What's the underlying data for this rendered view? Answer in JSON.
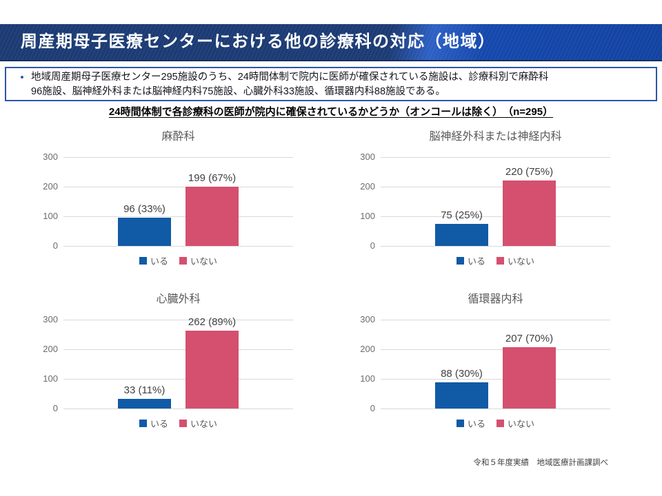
{
  "slide": {
    "title": "周産期母子医療センターにおける他の診療科の対応（地域）",
    "bullet_marker": "•",
    "bullet_text": "地域周産期母子医療センター295施設のうち、24時間体制で院内に医師が確保されている施設は、診療科別で麻酔科\n96施設、脳神経外科または脳神経内科75施設、心臓外科33施設、循環器内科88施設である。",
    "subtitle": "24時間体制で各診療科の医師が院内に確保されているかどうか（オンコールは除く）　（n=295）",
    "footer": "令和５年度実績　地域医療計画課調べ"
  },
  "colors": {
    "present_bar": "#115aa6",
    "absent_bar": "#d4506e",
    "header_dark": "#1c3b74",
    "header_bright": "#1548ad",
    "box_border": "#2b55a7",
    "gridline": "#d9d9d9",
    "axis_text": "#6c6c6c",
    "chart_title_text": "#595959",
    "value_text": "#404040"
  },
  "chart_data": [
    {
      "type": "bar",
      "title": "麻酔科",
      "categories": [
        "いる",
        "いない"
      ],
      "values": [
        96,
        199
      ],
      "value_labels": [
        "96 (33%)",
        "199 (67%)"
      ],
      "ylim": [
        0,
        300
      ],
      "yticks": [
        0,
        100,
        200,
        300
      ],
      "grid": true,
      "legend_position": "bottom"
    },
    {
      "type": "bar",
      "title": "脳神経外科または神経内科",
      "categories": [
        "いる",
        "いない"
      ],
      "values": [
        75,
        220
      ],
      "value_labels": [
        "75 (25%)",
        "220 (75%)"
      ],
      "ylim": [
        0,
        300
      ],
      "yticks": [
        0,
        100,
        200,
        300
      ],
      "grid": true,
      "legend_position": "bottom"
    },
    {
      "type": "bar",
      "title": "心臓外科",
      "categories": [
        "いる",
        "いない"
      ],
      "values": [
        33,
        262
      ],
      "value_labels": [
        "33 (11%)",
        "262 (89%)"
      ],
      "ylim": [
        0,
        300
      ],
      "yticks": [
        0,
        100,
        200,
        300
      ],
      "grid": true,
      "legend_position": "bottom"
    },
    {
      "type": "bar",
      "title": "循環器内科",
      "categories": [
        "いる",
        "いない"
      ],
      "values": [
        88,
        207
      ],
      "value_labels": [
        "88 (30%)",
        "207 (70%)"
      ],
      "ylim": [
        0,
        300
      ],
      "yticks": [
        0,
        100,
        200,
        300
      ],
      "grid": true,
      "legend_position": "bottom"
    }
  ]
}
